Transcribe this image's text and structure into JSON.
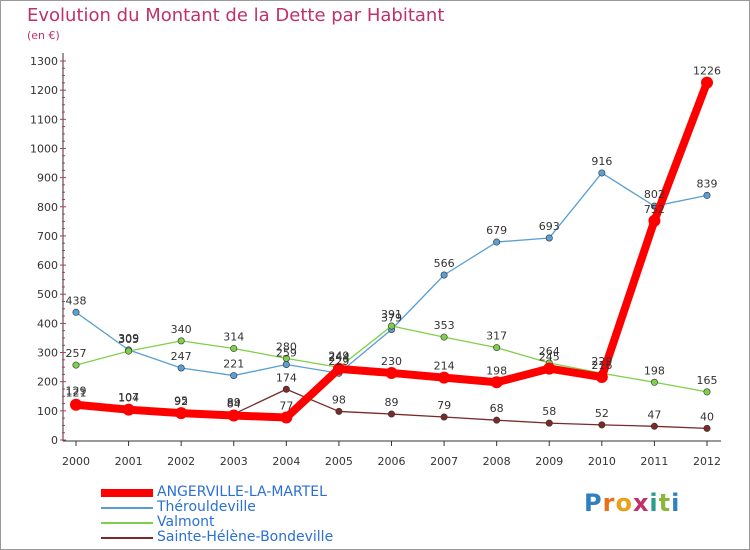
{
  "title": "Evolution du Montant de la Dette par Habitant",
  "subtitle": "(en €)",
  "logo": {
    "text": "Proxiti",
    "letters": [
      "P",
      "r",
      "o",
      "x",
      "i",
      "t",
      "i"
    ],
    "colors": [
      "#2f7fc1",
      "#e8701a",
      "#e8a21a",
      "#c0306a",
      "#2a9d8f",
      "#8ab83a",
      "#2f7fc1"
    ]
  },
  "chart_data": {
    "type": "line",
    "title": "Evolution du Montant de la Dette par Habitant",
    "subtitle": "(en €)",
    "xlabel": "",
    "ylabel": "",
    "x": [
      "2000",
      "2001",
      "2002",
      "2003",
      "2004",
      "2005",
      "2006",
      "2007",
      "2008",
      "2009",
      "2010",
      "2011",
      "2012"
    ],
    "yticks": [
      "0",
      "100",
      "200",
      "300",
      "400",
      "500",
      "600",
      "700",
      "800",
      "900",
      "1000",
      "1100",
      "1200",
      "1300"
    ],
    "ylim": [
      0,
      1300
    ],
    "grid": false,
    "legend_position": "bottom-left",
    "series": [
      {
        "name": "ANGERVILLE-LA-MARTEL",
        "color": "#ff0000",
        "values": [
          121,
          104,
          92,
          84,
          77,
          244,
          230,
          214,
          198,
          245,
          216,
          752,
          1226
        ]
      },
      {
        "name": "Thérouldeville",
        "color": "#5a9fd4",
        "values": [
          438,
          309,
          247,
          221,
          259,
          229,
          379,
          566,
          679,
          693,
          916,
          802,
          839
        ]
      },
      {
        "name": "Valmont",
        "color": "#7ed04a",
        "values": [
          257,
          305,
          340,
          314,
          280,
          249,
          391,
          353,
          317,
          264,
          229,
          198,
          165
        ]
      },
      {
        "name": "Sainte-Hélène-Bondeville",
        "color": "#7a2a2a",
        "values": [
          129,
          107,
          95,
          89,
          174,
          98,
          89,
          79,
          68,
          58,
          52,
          47,
          40
        ]
      }
    ]
  }
}
